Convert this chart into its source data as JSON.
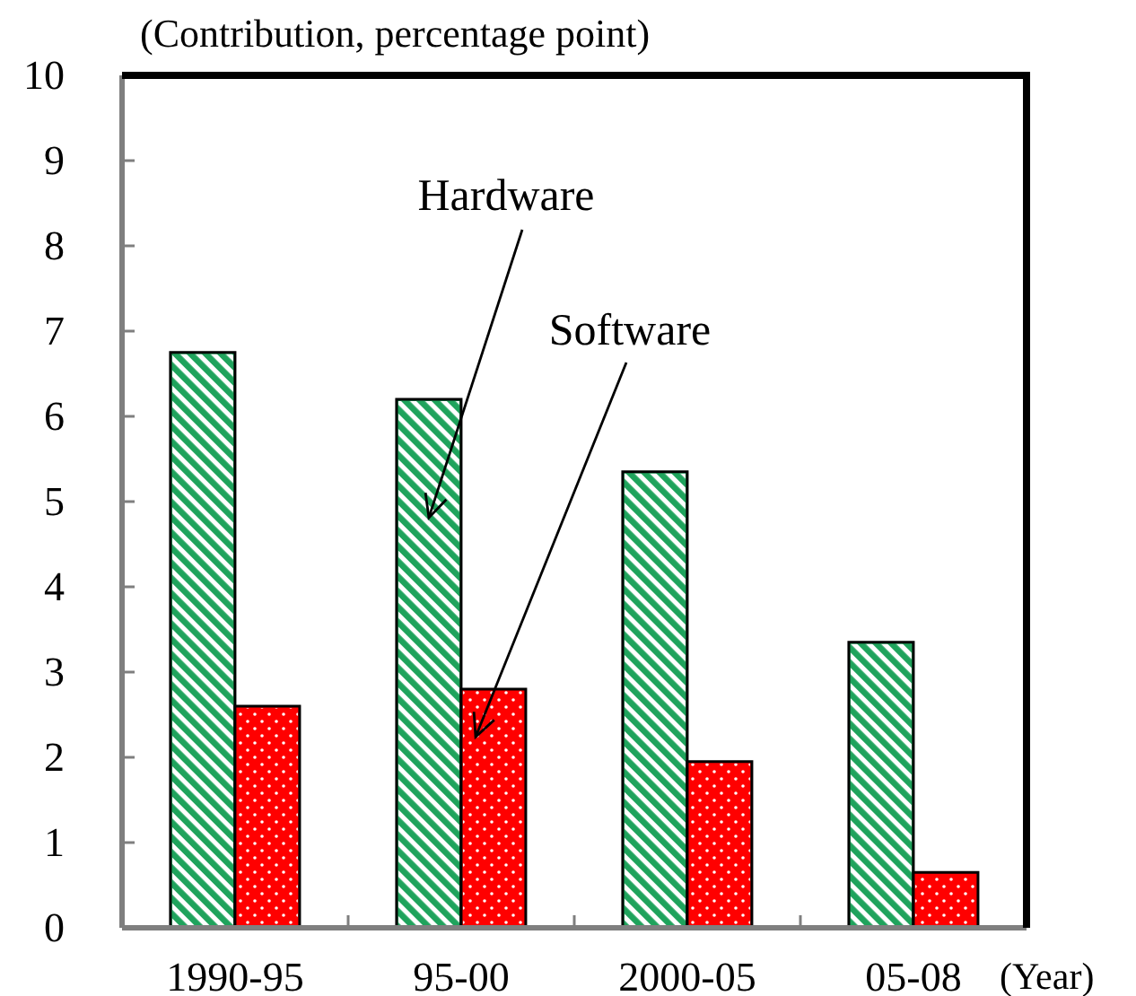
{
  "chart_data": {
    "type": "bar",
    "ylabel": "(Contribution, percentage point)",
    "xlabel": "(Year)",
    "categories": [
      "1990-95",
      "95-00",
      "2000-05",
      "05-08"
    ],
    "series": [
      {
        "name": "Hardware",
        "color": "#1fa35c",
        "values": [
          6.75,
          6.2,
          5.35,
          3.35
        ]
      },
      {
        "name": "Software",
        "color": "#ff0000",
        "values": [
          2.6,
          2.8,
          1.95,
          0.65
        ]
      }
    ],
    "ylim": [
      0,
      10
    ],
    "yticks": [
      0,
      1,
      2,
      3,
      4,
      5,
      6,
      7,
      8,
      9,
      10
    ]
  }
}
